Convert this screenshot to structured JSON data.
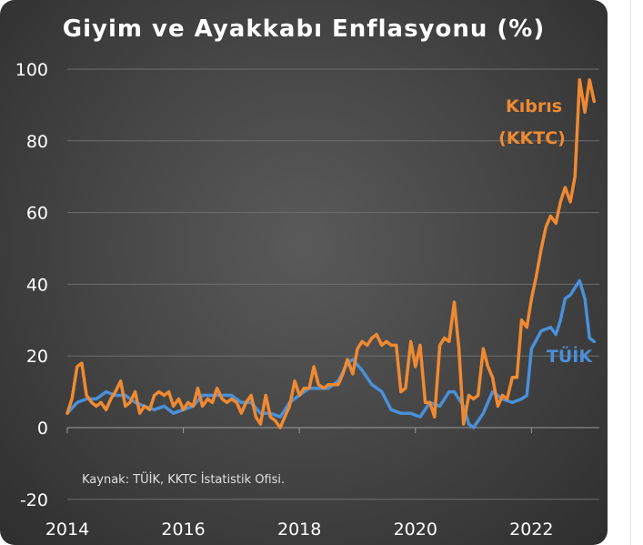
{
  "chart_data": {
    "type": "line",
    "title": "Giyim ve Ayakkabı Enflasyonu (%)",
    "xlabel": "",
    "ylabel": "",
    "source": "Kaynak: TÜİK, KKTC İstatistik Ofisi.",
    "x_ticks": [
      "2014",
      "2016",
      "2018",
      "2020",
      "2022"
    ],
    "y_ticks": [
      "-20",
      "0",
      "20",
      "40",
      "60",
      "80",
      "100"
    ],
    "xlim": [
      2014,
      2023.17
    ],
    "ylim": [
      -20,
      100
    ],
    "grid": true,
    "series": [
      {
        "name": "Kıbrıs (KKTC)",
        "label_lines": [
          "Kıbrıs",
          "(KKTC)"
        ],
        "color": "#f08a32",
        "points": [
          [
            2014.0,
            4
          ],
          [
            2014.08,
            8
          ],
          [
            2014.17,
            17
          ],
          [
            2014.25,
            18
          ],
          [
            2014.33,
            9
          ],
          [
            2014.42,
            7
          ],
          [
            2014.5,
            6
          ],
          [
            2014.58,
            7
          ],
          [
            2014.67,
            5
          ],
          [
            2014.75,
            8
          ],
          [
            2014.83,
            10
          ],
          [
            2014.92,
            13
          ],
          [
            2015.0,
            6
          ],
          [
            2015.08,
            7
          ],
          [
            2015.17,
            10
          ],
          [
            2015.25,
            4
          ],
          [
            2015.33,
            6
          ],
          [
            2015.42,
            5
          ],
          [
            2015.5,
            9
          ],
          [
            2015.58,
            10
          ],
          [
            2015.67,
            9
          ],
          [
            2015.75,
            10
          ],
          [
            2015.83,
            6
          ],
          [
            2015.92,
            8
          ],
          [
            2016.0,
            5
          ],
          [
            2016.08,
            7
          ],
          [
            2016.17,
            6
          ],
          [
            2016.25,
            11
          ],
          [
            2016.33,
            6
          ],
          [
            2016.42,
            8
          ],
          [
            2016.5,
            7
          ],
          [
            2016.58,
            11
          ],
          [
            2016.67,
            8
          ],
          [
            2016.75,
            7
          ],
          [
            2016.83,
            8
          ],
          [
            2016.92,
            7
          ],
          [
            2017.0,
            4
          ],
          [
            2017.08,
            7
          ],
          [
            2017.17,
            9
          ],
          [
            2017.25,
            3
          ],
          [
            2017.33,
            1
          ],
          [
            2017.42,
            9
          ],
          [
            2017.5,
            3
          ],
          [
            2017.58,
            2
          ],
          [
            2017.67,
            0
          ],
          [
            2017.75,
            3
          ],
          [
            2017.83,
            6
          ],
          [
            2017.92,
            13
          ],
          [
            2018.0,
            9
          ],
          [
            2018.08,
            11
          ],
          [
            2018.17,
            11
          ],
          [
            2018.25,
            17
          ],
          [
            2018.33,
            12
          ],
          [
            2018.42,
            11
          ],
          [
            2018.5,
            12
          ],
          [
            2018.58,
            12
          ],
          [
            2018.67,
            12
          ],
          [
            2018.75,
            15
          ],
          [
            2018.83,
            19
          ],
          [
            2018.92,
            15
          ],
          [
            2019.0,
            22
          ],
          [
            2019.08,
            24
          ],
          [
            2019.17,
            23
          ],
          [
            2019.25,
            25
          ],
          [
            2019.33,
            26
          ],
          [
            2019.42,
            23
          ],
          [
            2019.5,
            24
          ],
          [
            2019.58,
            23
          ],
          [
            2019.67,
            23
          ],
          [
            2019.75,
            10
          ],
          [
            2019.83,
            11
          ],
          [
            2019.92,
            24
          ],
          [
            2020.0,
            17
          ],
          [
            2020.08,
            23
          ],
          [
            2020.17,
            7
          ],
          [
            2020.25,
            7
          ],
          [
            2020.33,
            3
          ],
          [
            2020.42,
            23
          ],
          [
            2020.5,
            25
          ],
          [
            2020.58,
            24
          ],
          [
            2020.67,
            35
          ],
          [
            2020.75,
            22
          ],
          [
            2020.83,
            1
          ],
          [
            2020.92,
            9
          ],
          [
            2021.0,
            8
          ],
          [
            2021.08,
            9
          ],
          [
            2021.17,
            22
          ],
          [
            2021.25,
            17
          ],
          [
            2021.33,
            14
          ],
          [
            2021.42,
            6
          ],
          [
            2021.5,
            9
          ],
          [
            2021.58,
            8
          ],
          [
            2021.67,
            14
          ],
          [
            2021.75,
            14
          ],
          [
            2021.83,
            30
          ],
          [
            2021.92,
            28
          ],
          [
            2022.0,
            36
          ],
          [
            2022.08,
            42
          ],
          [
            2022.17,
            50
          ],
          [
            2022.25,
            56
          ],
          [
            2022.33,
            59
          ],
          [
            2022.42,
            57
          ],
          [
            2022.5,
            63
          ],
          [
            2022.58,
            67
          ],
          [
            2022.67,
            63
          ],
          [
            2022.75,
            70
          ],
          [
            2022.83,
            97
          ],
          [
            2022.92,
            88
          ],
          [
            2023.0,
            97
          ],
          [
            2023.08,
            91
          ]
        ]
      },
      {
        "name": "TÜİK",
        "label_lines": [
          "TÜİK"
        ],
        "color": "#4a90d9",
        "points": [
          [
            2014.0,
            4
          ],
          [
            2014.17,
            7
          ],
          [
            2014.33,
            8
          ],
          [
            2014.5,
            8
          ],
          [
            2014.67,
            10
          ],
          [
            2014.83,
            9
          ],
          [
            2015.0,
            9
          ],
          [
            2015.17,
            7
          ],
          [
            2015.33,
            6
          ],
          [
            2015.5,
            5
          ],
          [
            2015.67,
            6
          ],
          [
            2015.83,
            4
          ],
          [
            2016.0,
            5
          ],
          [
            2016.17,
            6
          ],
          [
            2016.33,
            9
          ],
          [
            2016.5,
            9
          ],
          [
            2016.67,
            9
          ],
          [
            2016.83,
            9
          ],
          [
            2017.0,
            7
          ],
          [
            2017.17,
            7
          ],
          [
            2017.33,
            4
          ],
          [
            2017.5,
            4
          ],
          [
            2017.67,
            3
          ],
          [
            2017.83,
            7
          ],
          [
            2018.0,
            9
          ],
          [
            2018.17,
            11
          ],
          [
            2018.33,
            11
          ],
          [
            2018.5,
            11
          ],
          [
            2018.67,
            13
          ],
          [
            2018.83,
            18
          ],
          [
            2018.92,
            19
          ],
          [
            2019.08,
            16
          ],
          [
            2019.25,
            12
          ],
          [
            2019.42,
            10
          ],
          [
            2019.58,
            5
          ],
          [
            2019.75,
            4
          ],
          [
            2019.92,
            4
          ],
          [
            2020.08,
            3
          ],
          [
            2020.25,
            7
          ],
          [
            2020.42,
            6
          ],
          [
            2020.58,
            10
          ],
          [
            2020.67,
            10
          ],
          [
            2020.83,
            6
          ],
          [
            2020.92,
            1
          ],
          [
            2021.0,
            0
          ],
          [
            2021.17,
            4
          ],
          [
            2021.33,
            10
          ],
          [
            2021.5,
            8
          ],
          [
            2021.67,
            7
          ],
          [
            2021.83,
            8
          ],
          [
            2021.92,
            9
          ],
          [
            2022.0,
            22
          ],
          [
            2022.17,
            27
          ],
          [
            2022.33,
            28
          ],
          [
            2022.42,
            26
          ],
          [
            2022.5,
            30
          ],
          [
            2022.58,
            36
          ],
          [
            2022.67,
            37
          ],
          [
            2022.83,
            41
          ],
          [
            2022.92,
            36
          ],
          [
            2023.0,
            25
          ],
          [
            2023.08,
            24
          ]
        ]
      }
    ]
  }
}
